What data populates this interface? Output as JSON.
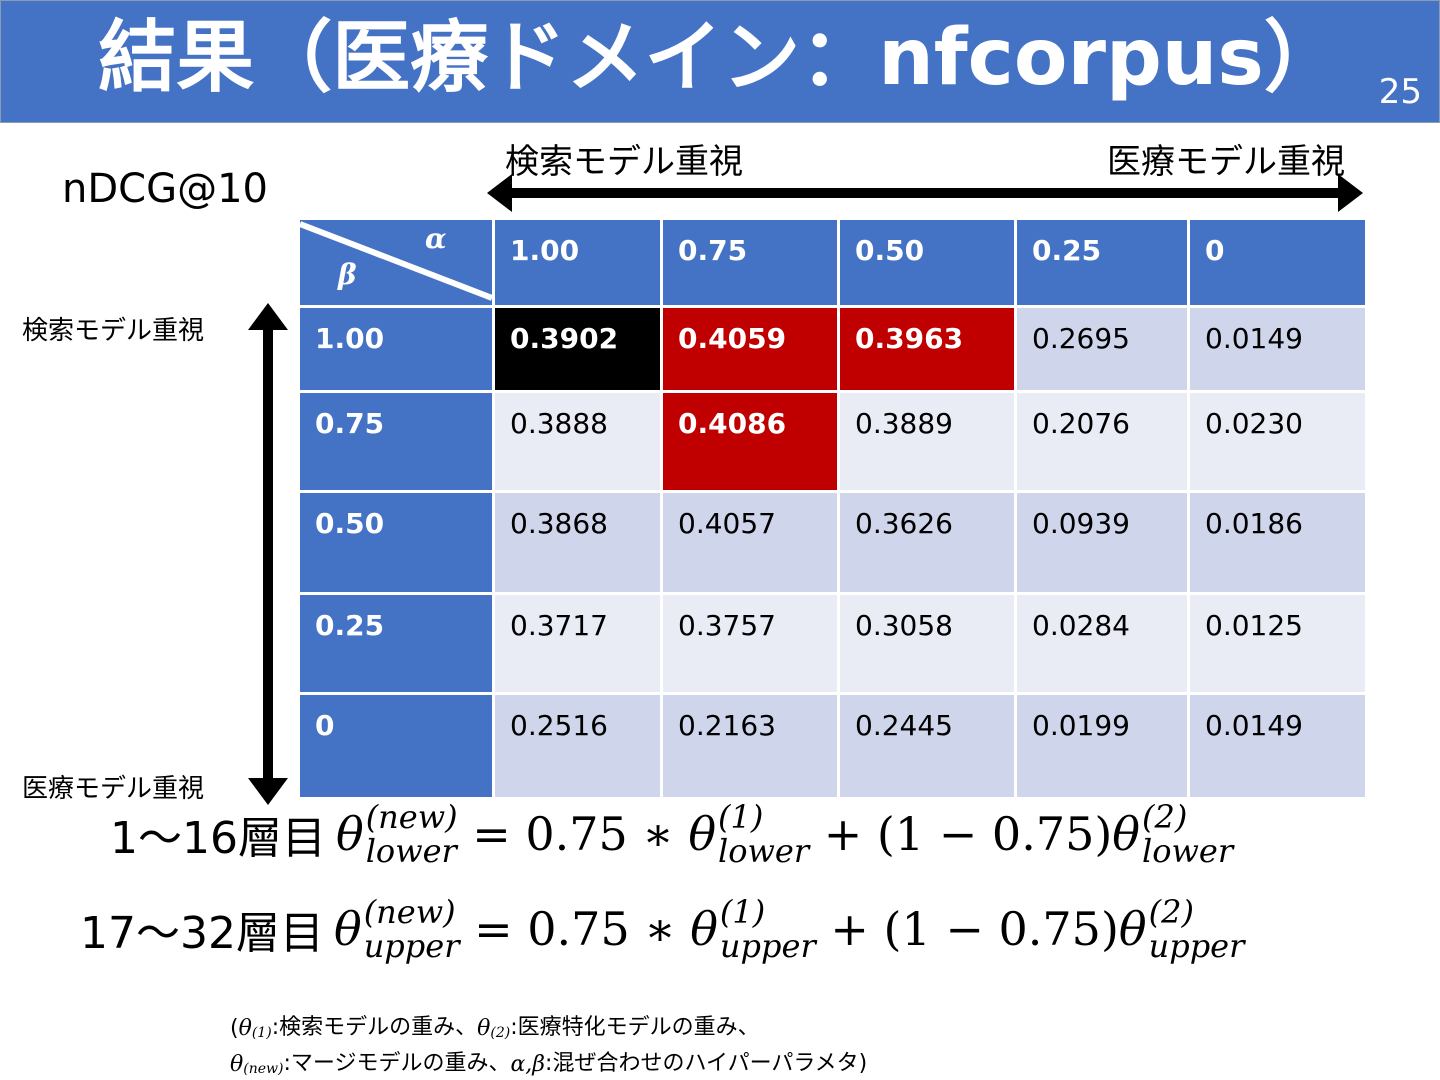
{
  "header": {
    "title": "結果（医療ドメイン：nfcorpus）",
    "page": "25"
  },
  "metric": "nDCG@10",
  "x_axis": {
    "left": "検索モデル重視",
    "right": "医療モデル重視"
  },
  "y_axis": {
    "top": "検索モデル重視",
    "bottom": "医療モデル重視"
  },
  "table": {
    "corner": {
      "column_symbol": "α",
      "row_symbol": "β"
    },
    "columns": [
      "1.00",
      "0.75",
      "0.50",
      "0.25",
      "0"
    ],
    "rows": [
      {
        "label": "1.00",
        "cells": [
          {
            "text": "0.3902",
            "highlight": "#000000"
          },
          {
            "text": "0.4059",
            "highlight": "#c00000"
          },
          {
            "text": "0.3963",
            "highlight": "#c00000"
          },
          {
            "text": "0.2695"
          },
          {
            "text": "0.0149"
          }
        ]
      },
      {
        "label": "0.75",
        "cells": [
          {
            "text": "0.3888"
          },
          {
            "text": "0.4086",
            "highlight": "#c00000"
          },
          {
            "text": "0.3889"
          },
          {
            "text": "0.2076"
          },
          {
            "text": "0.0230"
          }
        ]
      },
      {
        "label": "0.50",
        "cells": [
          {
            "text": "0.3868"
          },
          {
            "text": "0.4057"
          },
          {
            "text": "0.3626"
          },
          {
            "text": "0.0939"
          },
          {
            "text": "0.0186"
          }
        ]
      },
      {
        "label": "0.25",
        "cells": [
          {
            "text": "0.3717"
          },
          {
            "text": "0.3757"
          },
          {
            "text": "0.3058"
          },
          {
            "text": "0.0284"
          },
          {
            "text": "0.0125"
          }
        ]
      },
      {
        "label": "0",
        "cells": [
          {
            "text": "0.2516"
          },
          {
            "text": "0.2163"
          },
          {
            "text": "0.2445"
          },
          {
            "text": "0.0199"
          },
          {
            "text": "0.0149"
          }
        ]
      }
    ]
  },
  "equations": [
    {
      "layers": "1〜16層目",
      "terms": [
        {
          "base": "θ",
          "sup": "(new)",
          "sub": "lower"
        },
        {
          "text": " = 0.75 ∗ "
        },
        {
          "base": "θ",
          "sup": "(1)",
          "sub": "lower"
        },
        {
          "text": " + (1 − 0.75)"
        },
        {
          "base": "θ",
          "sup": "(2)",
          "sub": "lower"
        }
      ]
    },
    {
      "layers": "17〜32層目",
      "terms": [
        {
          "base": "θ",
          "sup": "(new)",
          "sub": "upper"
        },
        {
          "text": " = 0.75 ∗ "
        },
        {
          "base": "θ",
          "sup": "(1)",
          "sub": "upper"
        },
        {
          "text": " + (1 − 0.75)"
        },
        {
          "base": "θ",
          "sup": "(2)",
          "sub": "upper"
        }
      ]
    }
  ],
  "footnote": [
    [
      {
        "text": "("
      },
      {
        "base": "θ",
        "sup": "(1)"
      },
      {
        "text": ":検索モデルの重み、"
      },
      {
        "base": "θ",
        "sup": "(2)"
      },
      {
        "text": ":医療特化モデルの重み、"
      }
    ],
    [
      {
        "base": "θ",
        "sup": "(new)"
      },
      {
        "text": ":マージモデルの重み、"
      },
      {
        "base": "α,β"
      },
      {
        "text": ":混ぜ合わせのハイパーパラメタ)"
      }
    ]
  ]
}
